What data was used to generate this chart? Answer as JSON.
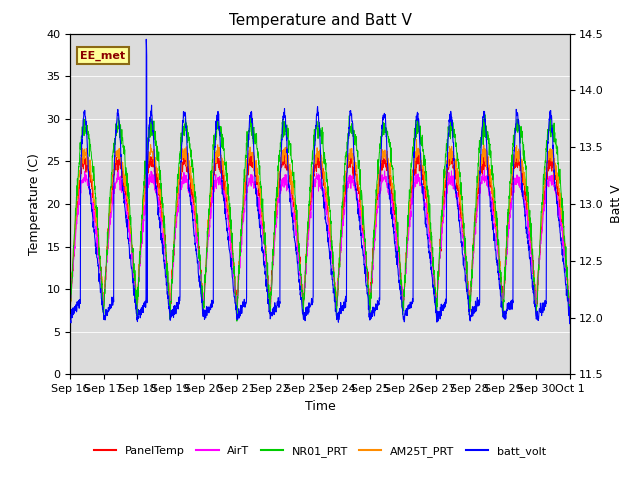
{
  "title": "Temperature and Batt V",
  "ylabel_left": "Temperature (C)",
  "ylabel_right": "Batt V",
  "xlabel": "Time",
  "annotation": "EE_met",
  "ylim_left": [
    0,
    40
  ],
  "ylim_right": [
    11.5,
    14.5
  ],
  "x_tick_labels": [
    "Sep 16",
    "Sep 17",
    "Sep 18",
    "Sep 19",
    "Sep 20",
    "Sep 21",
    "Sep 22",
    "Sep 23",
    "Sep 24",
    "Sep 25",
    "Sep 26",
    "Sep 27",
    "Sep 28",
    "Sep 29",
    "Sep 30",
    "Oct 1"
  ],
  "colors": {
    "PanelTemp": "#FF0000",
    "AirT": "#FF00FF",
    "NR01_PRT": "#00CC00",
    "AM25T_PRT": "#FF8C00",
    "batt_volt": "#0000FF"
  },
  "background_color": "#DCDCDC",
  "n_days": 15,
  "pts_per_day": 144,
  "figsize": [
    6.4,
    4.8
  ],
  "dpi": 100
}
